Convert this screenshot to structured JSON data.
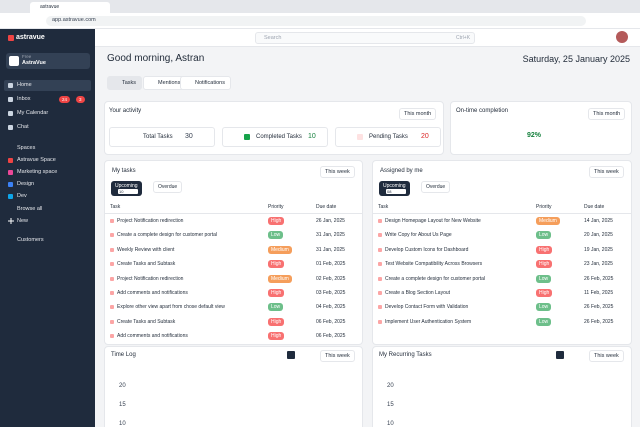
{
  "browser": {
    "tab": "astravue",
    "url": "app.astravue.com"
  },
  "sidebar": {
    "logo": "astravue",
    "plan": "Free",
    "workspace": "AstraVue",
    "nav": [
      {
        "label": "Home"
      },
      {
        "label": "Inbox",
        "badges": [
          24,
          3
        ]
      },
      {
        "label": "My Calendar"
      },
      {
        "label": "Chat"
      }
    ],
    "spaces_title": "Spaces",
    "spaces": [
      "Astravue Space",
      "Marketing space",
      "Design",
      "Dev"
    ],
    "browse": "Browse all",
    "new": "New",
    "customers": "Customers"
  },
  "topbar": {
    "search": "Search",
    "shortcut": "Ctrl+K"
  },
  "header": {
    "greeting": "Good morning, Astran",
    "date": "Saturday, 25 January 2025",
    "tabs": [
      "Tasks",
      "Mentions",
      "Notifications"
    ]
  },
  "activity": {
    "title": "Your activity",
    "period": "This month",
    "stats": [
      {
        "label": "Total Tasks",
        "value": 30
      },
      {
        "label": "Completed Tasks",
        "value": 10
      },
      {
        "label": "Pending Tasks",
        "value": 20
      }
    ]
  },
  "ontime": {
    "title": "On-time completion",
    "period": "This month",
    "value": "92%"
  },
  "my_tasks": {
    "title": "My tasks",
    "period": "This week",
    "tabs": [
      {
        "label": "Upcoming",
        "count": "10"
      },
      {
        "label": "Overdue"
      }
    ],
    "columns": [
      "Task",
      "Priority",
      "Due date"
    ],
    "rows": [
      [
        "Project Notification redirection",
        "High",
        "26 Jan, 2025"
      ],
      [
        "Create a complete design for customer portal",
        "Low",
        "31 Jan, 2025"
      ],
      [
        "Weekly Review with client",
        "Medium",
        "31 Jan, 2025"
      ],
      [
        "Create Tasks and Subtask",
        "High",
        "01 Feb, 2025"
      ],
      [
        "Project Notification redirection",
        "Medium",
        "02 Feb, 2025"
      ],
      [
        "Add comments and notifications",
        "High",
        "03 Feb, 2025"
      ],
      [
        "Explore other view apart from chose default view",
        "Low",
        "04 Feb, 2025"
      ],
      [
        "Create Tasks and Subtask",
        "High",
        "06 Feb, 2025"
      ],
      [
        "Add comments and notifications",
        "High",
        "06 Feb, 2025"
      ]
    ]
  },
  "assigned": {
    "title": "Assigned by me",
    "period": "This week",
    "tabs": [
      {
        "label": "Upcoming",
        "count": "08"
      },
      {
        "label": "Overdue"
      }
    ],
    "columns": [
      "Task",
      "Priority",
      "Due date"
    ],
    "rows": [
      [
        "Design Homepage Layout for New Website",
        "Medium",
        "14 Jan, 2025"
      ],
      [
        "Write Copy for About Us Page",
        "Low",
        "20 Jan, 2025"
      ],
      [
        "Develop Custom Icons for Dashboard",
        "High",
        "19 Jan, 2025"
      ],
      [
        "Test Website Compatibility Across Browsers",
        "High",
        "23 Jan, 2025"
      ],
      [
        "Create a complete design for customer portal",
        "Low",
        "26 Feb, 2025"
      ],
      [
        "Create a Blog Section Layout",
        "High",
        "11 Feb, 2025"
      ],
      [
        "Develop Contact Form with Validation",
        "Low",
        "26 Feb, 2025"
      ],
      [
        "Implement User Authentication System",
        "Low",
        "26 Feb, 2025"
      ]
    ]
  },
  "time_log": {
    "title": "Time Log",
    "period": "This week",
    "yticks": [
      20,
      15,
      10
    ]
  },
  "recurring": {
    "title": "My Recurring Tasks",
    "period": "This week",
    "yticks": [
      20,
      15,
      10
    ]
  }
}
